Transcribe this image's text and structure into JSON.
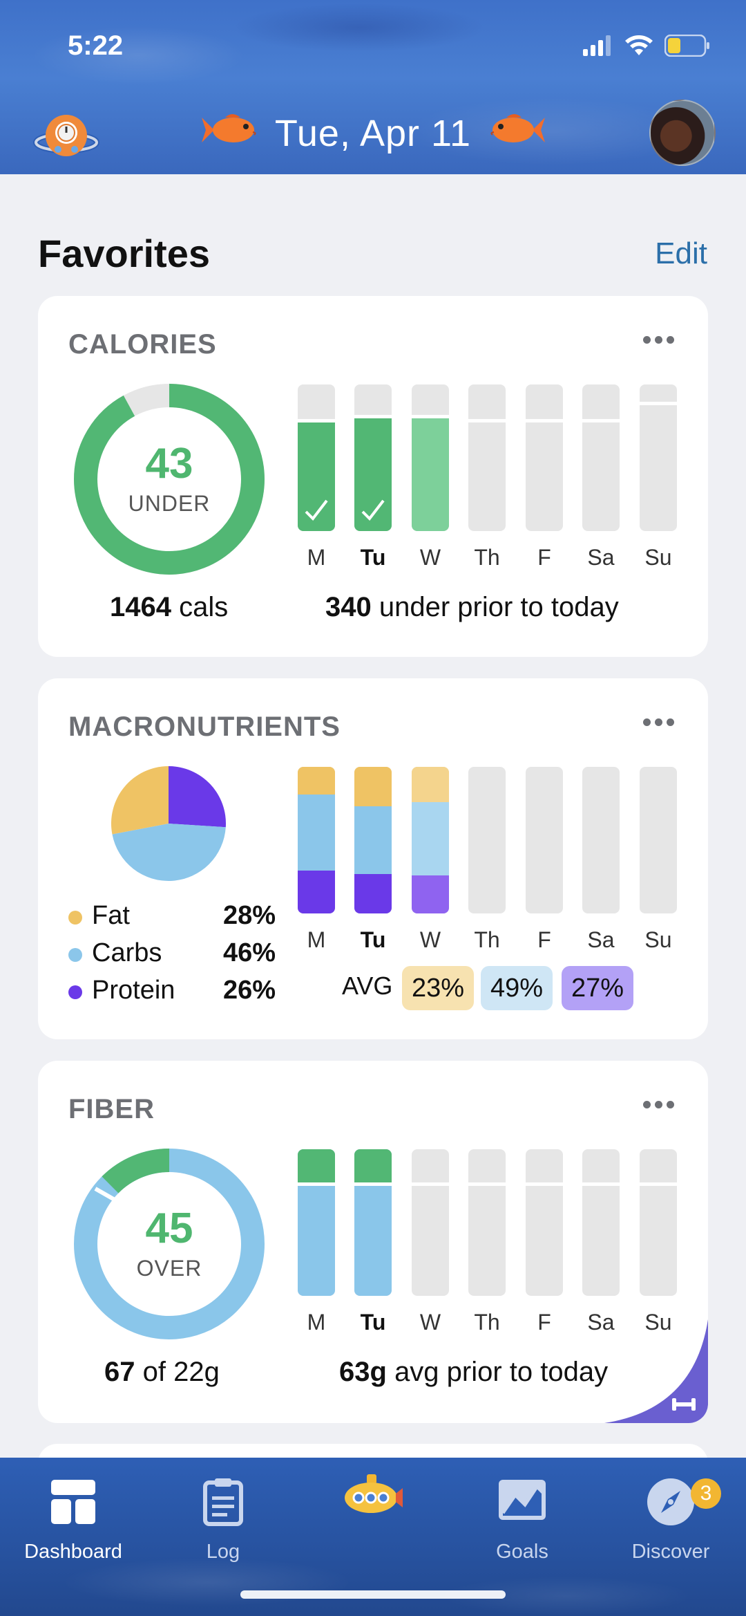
{
  "status_bar": {
    "time": "5:22"
  },
  "header": {
    "date": "Tue, Apr 11"
  },
  "favorites": {
    "title": "Favorites",
    "edit_label": "Edit"
  },
  "days": [
    "M",
    "Tu",
    "W",
    "Th",
    "F",
    "Sa",
    "Su"
  ],
  "calories": {
    "title": "CALORIES",
    "ring_value": "43",
    "ring_label": "UNDER",
    "ring_fraction": 0.92,
    "total_cals": "1464",
    "total_unit": "cals",
    "prior_value": "340",
    "prior_text": "under prior to today",
    "bar_fill_fraction": [
      0.74,
      0.77,
      0.77,
      0,
      0,
      0,
      0
    ],
    "bar_goal_fraction": [
      0.74,
      0.77,
      0.77,
      0.74,
      0.74,
      0.74,
      0.86
    ],
    "checked_days": [
      true,
      true,
      false,
      false,
      false,
      false,
      false
    ],
    "colors": {
      "green": "#52b774",
      "green_light": "#7dd09a",
      "track": "#e6e6e6"
    }
  },
  "macronutrients": {
    "title": "MACRONUTRIENTS",
    "legend": [
      {
        "name": "Fat",
        "pct": "28%",
        "color": "#efc364"
      },
      {
        "name": "Carbs",
        "pct": "46%",
        "color": "#8bc6ea"
      },
      {
        "name": "Protein",
        "pct": "26%",
        "color": "#6a39e8"
      }
    ],
    "avg_label": "AVG",
    "avg": [
      {
        "value": "23%",
        "bg": "#f7e2b0"
      },
      {
        "value": "49%",
        "bg": "#cfe6f5"
      },
      {
        "value": "27%",
        "bg": "#b3a1f6"
      }
    ],
    "daily": [
      {
        "fat": 0.19,
        "carbs": 0.52,
        "protein": 0.29
      },
      {
        "fat": 0.27,
        "carbs": 0.46,
        "protein": 0.27
      },
      {
        "fat": 0.24,
        "carbs": 0.5,
        "protein": 0.26
      },
      null,
      null,
      null,
      null
    ]
  },
  "fiber": {
    "title": "FIBER",
    "ring_value": "45",
    "ring_label": "OVER",
    "total_value": "67",
    "total_text": "of 22g",
    "prior_value": "63g",
    "prior_text": "avg prior to today",
    "colors": {
      "blue": "#8ac6ea",
      "green": "#52b774"
    }
  },
  "tabbar": {
    "tabs": [
      {
        "label": "Dashboard",
        "icon": "dashboard-icon"
      },
      {
        "label": "Log",
        "icon": "clipboard-icon"
      },
      {
        "label": "",
        "icon": "submarine-icon"
      },
      {
        "label": "Goals",
        "icon": "goals-icon"
      },
      {
        "label": "Discover",
        "icon": "compass-icon"
      }
    ],
    "discover_badge": "3"
  }
}
